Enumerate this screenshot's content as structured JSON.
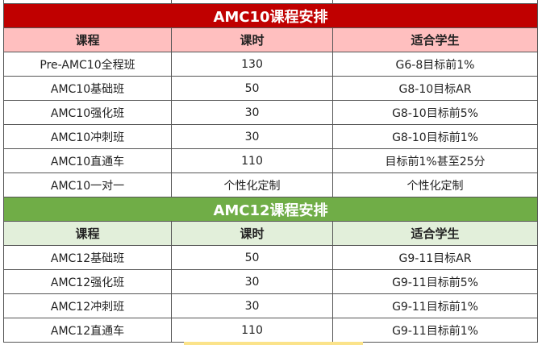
{
  "amc10": {
    "title": "AMC10课程安排",
    "headers": [
      "课程",
      "课时",
      "适合学生"
    ],
    "rows": [
      [
        "Pre-AMC10全程班",
        "130",
        "G6-8目标前1%"
      ],
      [
        "AMC10基础班",
        "50",
        "G8-10目标AR"
      ],
      [
        "AMC10强化班",
        "30",
        "G8-10目标前5%"
      ],
      [
        "AMC10冲刺班",
        "30",
        "G8-10目标前1%"
      ],
      [
        "AMC10直通车",
        "110",
        "目标前1%甚至25分"
      ],
      [
        "AMC10一对一",
        "个性化定制",
        "个性化定制"
      ]
    ]
  },
  "amc12": {
    "title": "AMC12课程安排",
    "headers": [
      "课程",
      "课时",
      "适合学生"
    ],
    "rows": [
      [
        "AMC12基础班",
        "50",
        "G9-11目标AR"
      ],
      [
        "AMC12强化班",
        "30",
        "G9-11目标前5%"
      ],
      [
        "AMC12冲刺班",
        "30",
        "G9-11目标前1%"
      ],
      [
        "AMC12直通车",
        "110",
        "G9-11目标前1%"
      ]
    ]
  },
  "colors": {
    "amc10_title": "#c00000",
    "amc10_header": "#ffbfbf",
    "amc12_title": "#70ad47",
    "amc12_header": "#e2efda"
  }
}
